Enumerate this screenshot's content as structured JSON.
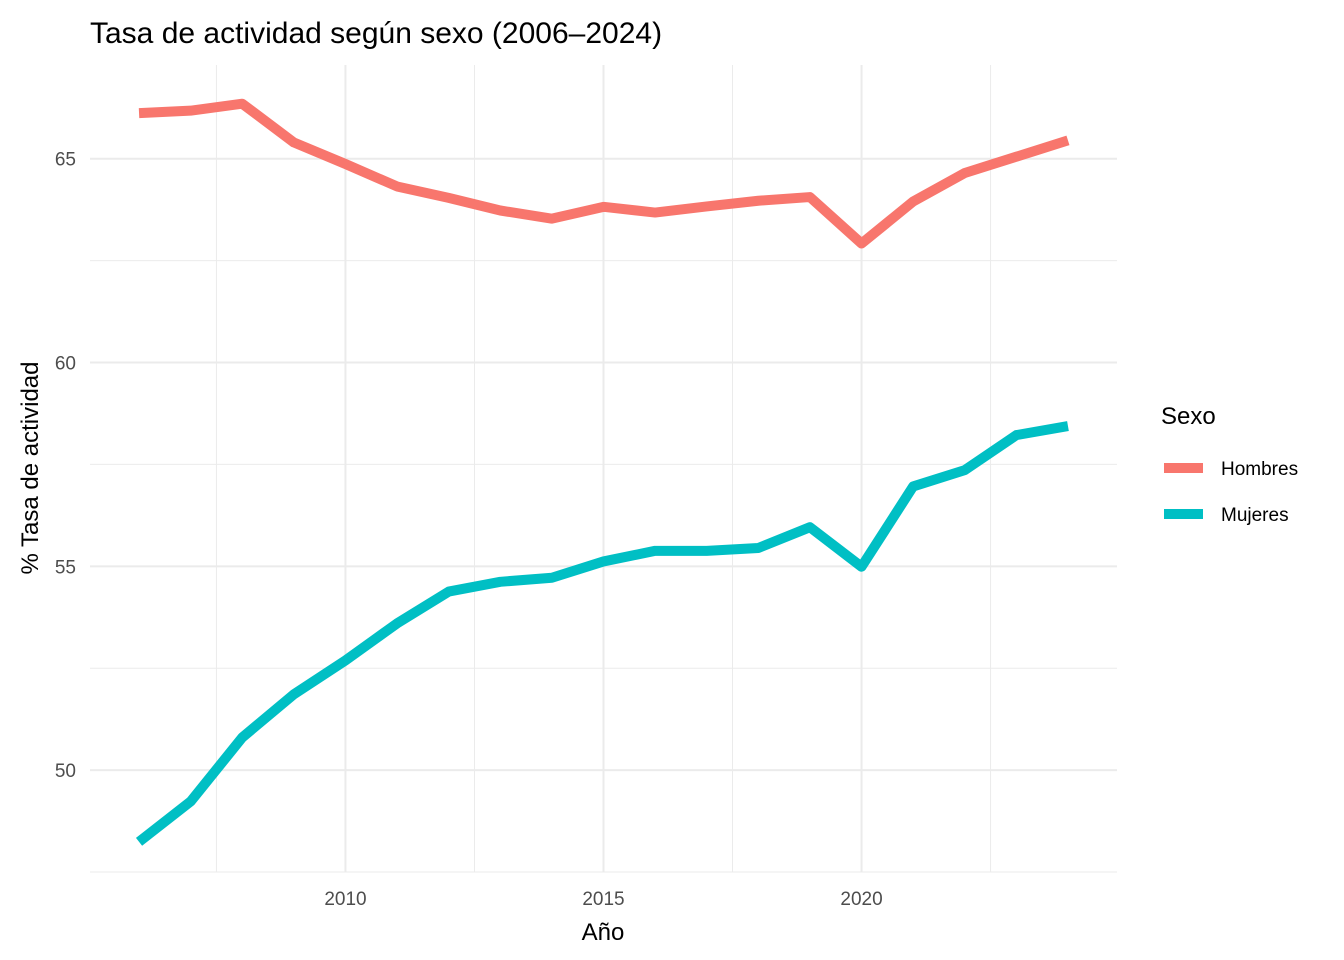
{
  "chart_data": {
    "type": "line",
    "title": "Tasa de actividad según sexo (2006–2024)",
    "xlabel": "Año",
    "ylabel": "% Tasa de actividad",
    "xlim": [
      2005.05,
      2024.95
    ],
    "ylim": [
      47.5,
      67.3
    ],
    "x_ticks": [
      2010,
      2015,
      2020
    ],
    "y_ticks": [
      50,
      55,
      60,
      65
    ],
    "grid": true,
    "legend": {
      "title": "Sexo",
      "position": "right"
    },
    "x": [
      2006,
      2007,
      2008,
      2009,
      2010,
      2011,
      2012,
      2013,
      2014,
      2015,
      2016,
      2017,
      2018,
      2019,
      2020,
      2021,
      2022,
      2023,
      2024
    ],
    "series": [
      {
        "name": "Hombres",
        "color": "#F8766D",
        "values": [
          66.12,
          66.18,
          66.35,
          65.4,
          64.87,
          64.32,
          64.04,
          63.73,
          63.53,
          63.82,
          63.68,
          63.83,
          63.97,
          64.06,
          62.92,
          63.95,
          64.65,
          65.05,
          65.45
        ]
      },
      {
        "name": "Mujeres",
        "color": "#00BFC4",
        "values": [
          48.24,
          49.23,
          50.8,
          51.86,
          52.69,
          53.6,
          54.38,
          54.62,
          54.72,
          55.12,
          55.38,
          55.38,
          55.45,
          55.96,
          54.99,
          56.96,
          57.36,
          58.22,
          58.44
        ]
      }
    ]
  }
}
